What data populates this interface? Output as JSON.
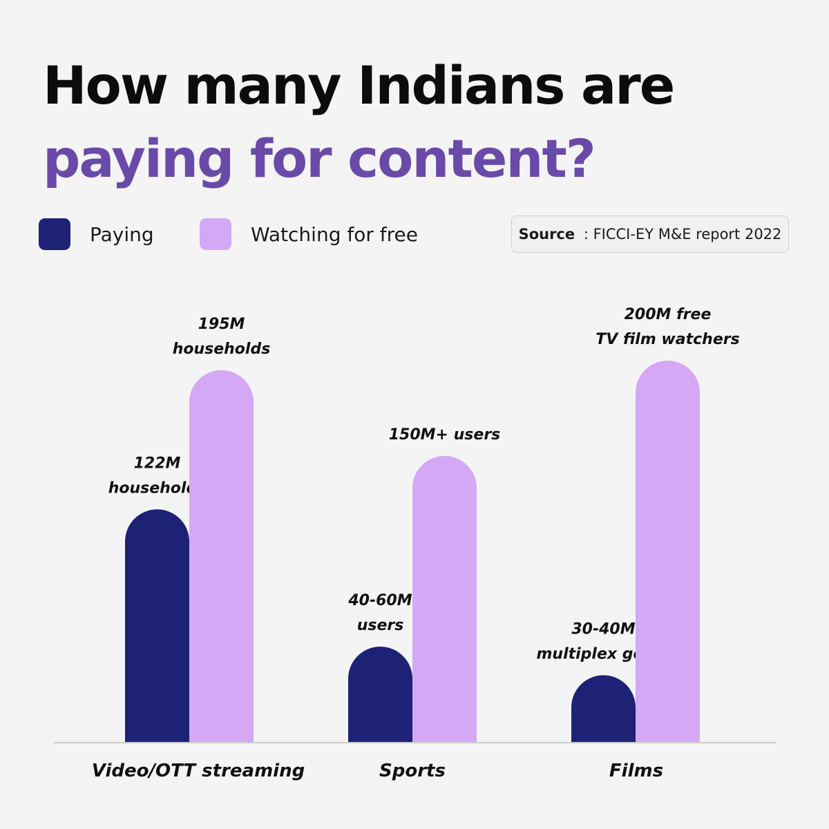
{
  "title": {
    "line1": "How many Indians are",
    "line2": "paying for content?"
  },
  "legend": [
    {
      "label": "Paying",
      "color": "#1e2276"
    },
    {
      "label": "Watching for free",
      "color": "#d4a8f5"
    }
  ],
  "source": {
    "label": "Source",
    "separator": " : ",
    "text": "FICCI-EY M&E report 2022"
  },
  "chart_data": {
    "type": "bar",
    "title": "How many Indians are paying for content?",
    "categories": [
      "Video/OTT streaming",
      "Sports",
      "Films"
    ],
    "series": [
      {
        "name": "Paying",
        "color": "#1e2276",
        "values": [
          122,
          50,
          35
        ],
        "labels": [
          [
            "122M",
            "households"
          ],
          [
            "40-60M",
            "users"
          ],
          [
            "30-40M",
            "multiplex goers"
          ]
        ]
      },
      {
        "name": "Watching for free",
        "color": "#d4a8f5",
        "values": [
          195,
          150,
          200
        ],
        "labels": [
          [
            "195M",
            "households"
          ],
          [
            "150M+ users"
          ],
          [
            "200M free",
            "TV film watchers"
          ]
        ]
      }
    ],
    "ylim": [
      0,
      200
    ],
    "grid": false,
    "legend_position": "top-left",
    "note": "values are read from bar heights; Sports and Films paying values are ranges (40-60M, 30-40M) shown at midpoint"
  }
}
